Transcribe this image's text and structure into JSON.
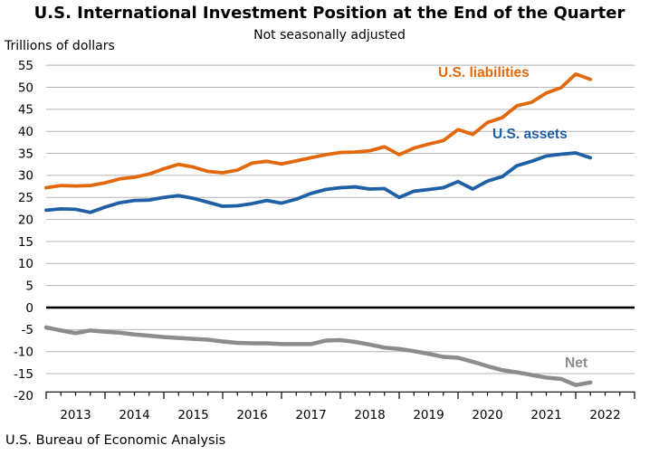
{
  "title": "U.S. International Investment Position at the End of the Quarter",
  "subtitle": "Not seasonally adjusted",
  "y_axis_label": "Trillions of dollars",
  "source": "U.S. Bureau of Economic Analysis",
  "colors": {
    "liabilities": "#E2690B",
    "assets": "#1F5FA6",
    "net": "#8C8C8C",
    "grid": "#B3B3B3",
    "zero_line": "#000000",
    "axis": "#000000"
  },
  "chart_data": {
    "type": "line",
    "title": "U.S. International Investment Position at the End of the Quarter",
    "subtitle": "Not seasonally adjusted",
    "ylabel": "Trillions of dollars",
    "ylim": [
      -20,
      55
    ],
    "ytick_step": 5,
    "grid": true,
    "legend": "inline-labels",
    "x_year_labels": [
      "2013",
      "2014",
      "2015",
      "2016",
      "2017",
      "2018",
      "2019",
      "2020",
      "2021",
      "2022"
    ],
    "quarters": [
      "2012 Q4",
      "2013 Q1",
      "2013 Q2",
      "2013 Q3",
      "2013 Q4",
      "2014 Q1",
      "2014 Q2",
      "2014 Q3",
      "2014 Q4",
      "2015 Q1",
      "2015 Q2",
      "2015 Q3",
      "2015 Q4",
      "2016 Q1",
      "2016 Q2",
      "2016 Q3",
      "2016 Q4",
      "2017 Q1",
      "2017 Q2",
      "2017 Q3",
      "2017 Q4",
      "2018 Q1",
      "2018 Q2",
      "2018 Q3",
      "2018 Q4",
      "2019 Q1",
      "2019 Q2",
      "2019 Q3",
      "2019 Q4",
      "2020 Q1",
      "2020 Q2",
      "2020 Q3",
      "2020 Q4",
      "2021 Q1",
      "2021 Q2",
      "2021 Q3",
      "2021 Q4",
      "2022 Q1"
    ],
    "series": [
      {
        "name": "U.S. liabilities",
        "color_key": "liabilities",
        "values": [
          27.2,
          27.7,
          27.6,
          27.7,
          28.3,
          29.2,
          29.6,
          30.3,
          31.5,
          32.5,
          31.9,
          30.9,
          30.6,
          31.2,
          32.8,
          33.2,
          32.6,
          33.3,
          34.0,
          34.7,
          35.2,
          35.3,
          35.6,
          36.5,
          34.7,
          36.2,
          37.1,
          37.9,
          40.4,
          39.3,
          42.0,
          43.1,
          45.8,
          46.6,
          48.7,
          49.9,
          53.0,
          51.8
        ]
      },
      {
        "name": "U.S. assets",
        "color_key": "assets",
        "values": [
          22.1,
          22.4,
          22.3,
          21.6,
          22.8,
          23.8,
          24.3,
          24.4,
          25.0,
          25.4,
          24.8,
          23.9,
          23.0,
          23.1,
          23.6,
          24.3,
          23.7,
          24.6,
          25.9,
          26.8,
          27.2,
          27.4,
          26.9,
          27.0,
          25.0,
          26.4,
          26.8,
          27.2,
          28.6,
          26.9,
          28.7,
          29.7,
          32.2,
          33.2,
          34.4,
          34.8,
          35.1,
          34.0
        ]
      },
      {
        "name": "Net",
        "color_key": "net",
        "values": [
          -4.5,
          -5.2,
          -5.8,
          -5.2,
          -5.5,
          -5.7,
          -6.1,
          -6.4,
          -6.7,
          -6.9,
          -7.1,
          -7.3,
          -7.7,
          -8.0,
          -8.1,
          -8.1,
          -8.3,
          -8.3,
          -8.3,
          -7.5,
          -7.4,
          -7.8,
          -8.4,
          -9.1,
          -9.4,
          -9.9,
          -10.5,
          -11.2,
          -11.4,
          -12.3,
          -13.3,
          -14.2,
          -14.7,
          -15.3,
          -15.9,
          -16.2,
          -17.6,
          -17.0
        ]
      }
    ]
  },
  "series_labels": {
    "liabilities": "U.S. liabilities",
    "assets": "U.S. assets",
    "net": "Net"
  }
}
